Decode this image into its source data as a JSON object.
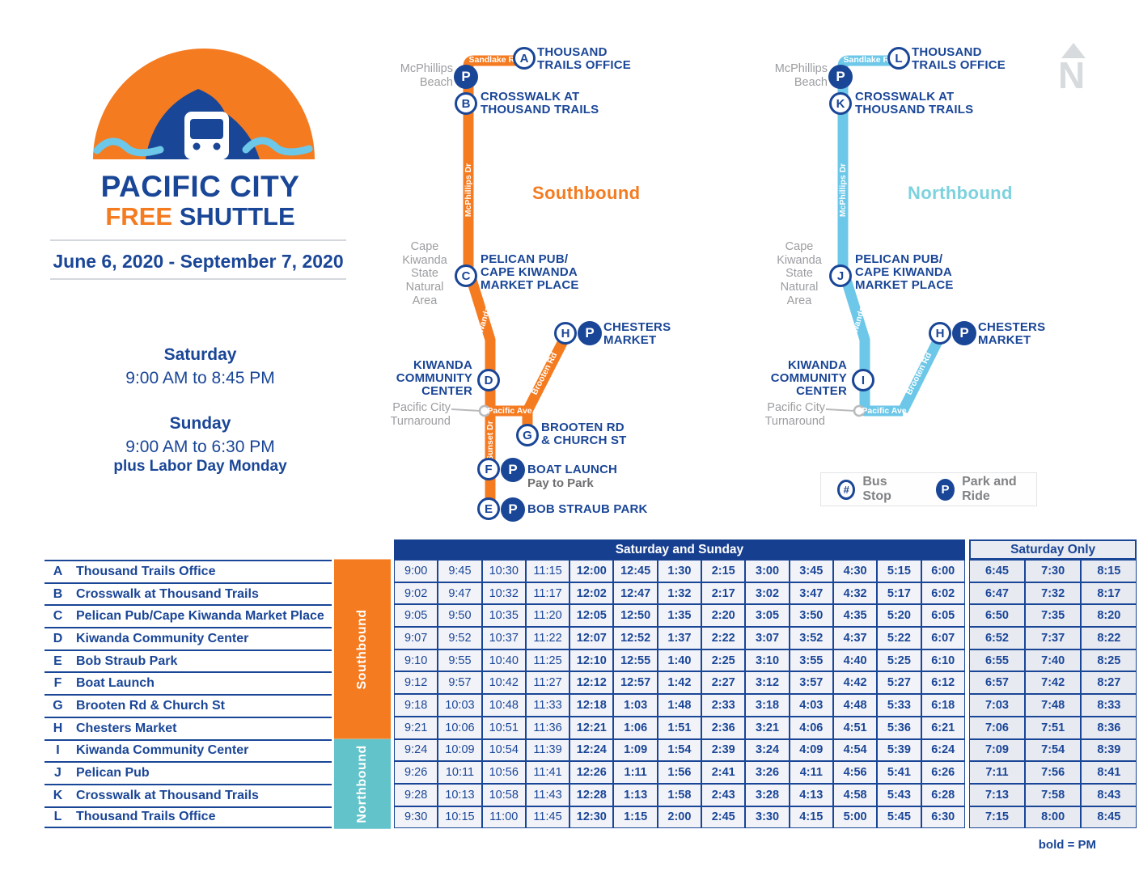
{
  "colors": {
    "blue": "#1a4697",
    "orange": "#f47b20",
    "light_blue": "#6cc7e8",
    "teal": "#62c3ca",
    "northbound_text": "#7dd2de",
    "gray": "#9b9da1"
  },
  "logo": {
    "title": "PACIFIC CITY",
    "free": "FREE",
    "shuttle": "SHUTTLE",
    "dates": "June 6, 2020 - September 7, 2020"
  },
  "hours": {
    "saturday_label": "Saturday",
    "saturday_hours": "9:00 AM to 8:45 PM",
    "sunday_label": "Sunday",
    "sunday_hours": "9:00 AM to 6:30 PM",
    "labor_day_note": "plus Labor Day Monday"
  },
  "compass": {
    "letter": "N"
  },
  "legend": {
    "bus_stop_symbol": "#",
    "bus_stop_label": "Bus Stop",
    "park_symbol": "P",
    "park_label": "Park and Ride"
  },
  "maps": {
    "south": {
      "title": "Southbound",
      "areas": {
        "beach": "McPhillips\nBeach",
        "cape": "Cape\nKiwanda\nState\nNatural\nArea",
        "turnaround": "Pacific City\nTurnaround"
      },
      "roads": {
        "sandlake": "Sandlake Rd",
        "mcphillips": "McPhillips Dr",
        "cape_kiwanda": "Cape Kiwanda Dr",
        "sunset": "Sunset Dr",
        "pacific": "Pacific Ave",
        "brooten": "Brooten Rd"
      },
      "stops": [
        {
          "letter": "A",
          "label": "THOUSAND\nTRAILS OFFICE"
        },
        {
          "letter": "B",
          "label": "CROSSWALK AT\nTHOUSAND TRAILS"
        },
        {
          "letter": "C",
          "label": "PELICAN PUB/\nCAPE KIWANDA\nMARKET PLACE"
        },
        {
          "letter": "D",
          "label": "KIWANDA\nCOMMUNITY\nCENTER"
        },
        {
          "letter": "G",
          "label": "BROOTEN RD\n& CHURCH ST"
        },
        {
          "letter": "F",
          "label": "BOAT LAUNCH",
          "sub": "Pay to Park"
        },
        {
          "letter": "E",
          "label": "BOB STRAUB PARK"
        },
        {
          "letter": "H",
          "label": "CHESTERS\nMARKET"
        }
      ]
    },
    "north": {
      "title": "Northbound",
      "areas": {
        "beach": "McPhillips\nBeach",
        "cape": "Cape\nKiwanda\nState\nNatural\nArea",
        "turnaround": "Pacific City\nTurnaround"
      },
      "roads": {
        "sandlake": "Sandlake Rd",
        "mcphillips": "McPhillips Dr",
        "cape_kiwanda": "Cape Kiwanda Dr",
        "pacific": "Pacific Ave",
        "brooten": "Brooten Rd"
      },
      "stops": [
        {
          "letter": "L",
          "label": "THOUSAND\nTRAILS OFFICE"
        },
        {
          "letter": "K",
          "label": "CROSSWALK AT\nTHOUSAND TRAILS"
        },
        {
          "letter": "J",
          "label": "PELICAN PUB/\nCAPE KIWANDA\nMARKET PLACE"
        },
        {
          "letter": "I",
          "label": "KIWANDA\nCOMMUNITY\nCENTER"
        },
        {
          "letter": "H",
          "label": "CHESTERS\nMARKET"
        }
      ]
    }
  },
  "table": {
    "header_sat_sun": "Saturday and Sunday",
    "header_sat_only": "Saturday Only",
    "southbound_band": "Southbound",
    "northbound_band": "Northbound",
    "pm_note": "bold = PM",
    "pm_start_index": 4,
    "saturday_only_start_index": 13,
    "rows": [
      {
        "letter": "A",
        "name": "Thousand Trails Office",
        "direction": "southbound",
        "times": [
          "9:00",
          "9:45",
          "10:30",
          "11:15",
          "12:00",
          "12:45",
          "1:30",
          "2:15",
          "3:00",
          "3:45",
          "4:30",
          "5:15",
          "6:00",
          "6:45",
          "7:30",
          "8:15"
        ]
      },
      {
        "letter": "B",
        "name": "Crosswalk at Thousand Trails",
        "direction": "southbound",
        "times": [
          "9:02",
          "9:47",
          "10:32",
          "11:17",
          "12:02",
          "12:47",
          "1:32",
          "2:17",
          "3:02",
          "3:47",
          "4:32",
          "5:17",
          "6:02",
          "6:47",
          "7:32",
          "8:17"
        ]
      },
      {
        "letter": "C",
        "name": "Pelican Pub/Cape Kiwanda Market Place",
        "direction": "southbound",
        "times": [
          "9:05",
          "9:50",
          "10:35",
          "11:20",
          "12:05",
          "12:50",
          "1:35",
          "2:20",
          "3:05",
          "3:50",
          "4:35",
          "5:20",
          "6:05",
          "6:50",
          "7:35",
          "8:20"
        ]
      },
      {
        "letter": "D",
        "name": "Kiwanda Community Center",
        "direction": "southbound",
        "times": [
          "9:07",
          "9:52",
          "10:37",
          "11:22",
          "12:07",
          "12:52",
          "1:37",
          "2:22",
          "3:07",
          "3:52",
          "4:37",
          "5:22",
          "6:07",
          "6:52",
          "7:37",
          "8:22"
        ]
      },
      {
        "letter": "E",
        "name": "Bob Straub Park",
        "direction": "southbound",
        "times": [
          "9:10",
          "9:55",
          "10:40",
          "11:25",
          "12:10",
          "12:55",
          "1:40",
          "2:25",
          "3:10",
          "3:55",
          "4:40",
          "5:25",
          "6:10",
          "6:55",
          "7:40",
          "8:25"
        ]
      },
      {
        "letter": "F",
        "name": "Boat Launch",
        "direction": "southbound",
        "times": [
          "9:12",
          "9:57",
          "10:42",
          "11:27",
          "12:12",
          "12:57",
          "1:42",
          "2:27",
          "3:12",
          "3:57",
          "4:42",
          "5:27",
          "6:12",
          "6:57",
          "7:42",
          "8:27"
        ]
      },
      {
        "letter": "G",
        "name": "Brooten Rd & Church St",
        "direction": "southbound",
        "times": [
          "9:18",
          "10:03",
          "10:48",
          "11:33",
          "12:18",
          "1:03",
          "1:48",
          "2:33",
          "3:18",
          "4:03",
          "4:48",
          "5:33",
          "6:18",
          "7:03",
          "7:48",
          "8:33"
        ]
      },
      {
        "letter": "H",
        "name": "Chesters Market",
        "direction": "southbound",
        "times": [
          "9:21",
          "10:06",
          "10:51",
          "11:36",
          "12:21",
          "1:06",
          "1:51",
          "2:36",
          "3:21",
          "4:06",
          "4:51",
          "5:36",
          "6:21",
          "7:06",
          "7:51",
          "8:36"
        ]
      },
      {
        "letter": "I",
        "name": "Kiwanda Community Center",
        "direction": "northbound",
        "times": [
          "9:24",
          "10:09",
          "10:54",
          "11:39",
          "12:24",
          "1:09",
          "1:54",
          "2:39",
          "3:24",
          "4:09",
          "4:54",
          "5:39",
          "6:24",
          "7:09",
          "7:54",
          "8:39"
        ]
      },
      {
        "letter": "J",
        "name": "Pelican Pub",
        "direction": "northbound",
        "times": [
          "9:26",
          "10:11",
          "10:56",
          "11:41",
          "12:26",
          "1:11",
          "1:56",
          "2:41",
          "3:26",
          "4:11",
          "4:56",
          "5:41",
          "6:26",
          "7:11",
          "7:56",
          "8:41"
        ]
      },
      {
        "letter": "K",
        "name": "Crosswalk at Thousand Trails",
        "direction": "northbound",
        "times": [
          "9:28",
          "10:13",
          "10:58",
          "11:43",
          "12:28",
          "1:13",
          "1:58",
          "2:43",
          "3:28",
          "4:13",
          "4:58",
          "5:43",
          "6:28",
          "7:13",
          "7:58",
          "8:43"
        ]
      },
      {
        "letter": "L",
        "name": "Thousand Trails Office",
        "direction": "northbound",
        "times": [
          "9:30",
          "10:15",
          "11:00",
          "11:45",
          "12:30",
          "1:15",
          "2:00",
          "2:45",
          "3:30",
          "4:15",
          "5:00",
          "5:45",
          "6:30",
          "7:15",
          "8:00",
          "8:45"
        ]
      }
    ]
  }
}
